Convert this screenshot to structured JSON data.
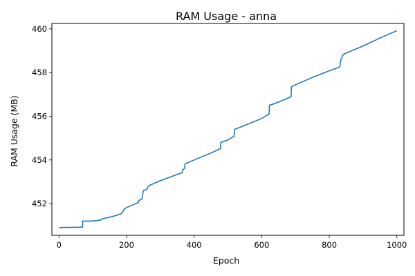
{
  "chart_data": {
    "type": "line",
    "title": "RAM Usage - anna",
    "xlabel": "Epoch",
    "ylabel": "RAM Usage (MB)",
    "xlim": [
      -21,
      1021
    ],
    "ylim": [
      450.55,
      460.25
    ],
    "xticks": [
      0,
      200,
      400,
      600,
      800,
      1000
    ],
    "yticks": [
      452,
      454,
      456,
      458,
      460
    ],
    "grid": false,
    "legend": "none",
    "series": [
      {
        "color": "#1f77b4",
        "x": [
          0,
          20,
          40,
          60,
          70,
          70,
          90,
          110,
          125,
          127,
          130,
          150,
          170,
          185,
          188,
          190,
          192,
          193,
          200,
          220,
          235,
          237,
          245,
          247,
          249,
          250,
          255,
          260,
          262,
          263,
          270,
          300,
          340,
          365,
          366,
          372,
          373,
          400,
          450,
          478,
          479,
          500,
          518,
          520,
          550,
          600,
          622,
          623,
          650,
          680,
          687,
          688,
          700,
          750,
          800,
          830,
          832,
          834,
          837,
          839,
          842,
          845,
          900,
          950,
          1000
        ],
        "y": [
          450.9,
          450.91,
          450.91,
          450.92,
          450.93,
          451.2,
          451.2,
          451.22,
          451.25,
          451.3,
          451.31,
          451.38,
          451.46,
          451.55,
          451.6,
          451.65,
          451.72,
          451.75,
          451.82,
          451.95,
          452.05,
          452.15,
          452.2,
          452.3,
          452.55,
          452.6,
          452.63,
          452.65,
          452.72,
          452.77,
          452.85,
          453.05,
          453.28,
          453.42,
          453.55,
          453.62,
          453.82,
          454.0,
          454.32,
          454.52,
          454.8,
          454.92,
          455.08,
          455.4,
          455.58,
          455.9,
          456.1,
          456.5,
          456.65,
          456.85,
          456.9,
          457.35,
          457.44,
          457.78,
          458.08,
          458.25,
          458.3,
          458.6,
          458.63,
          458.78,
          458.82,
          458.86,
          459.22,
          459.58,
          459.92
        ]
      }
    ]
  }
}
